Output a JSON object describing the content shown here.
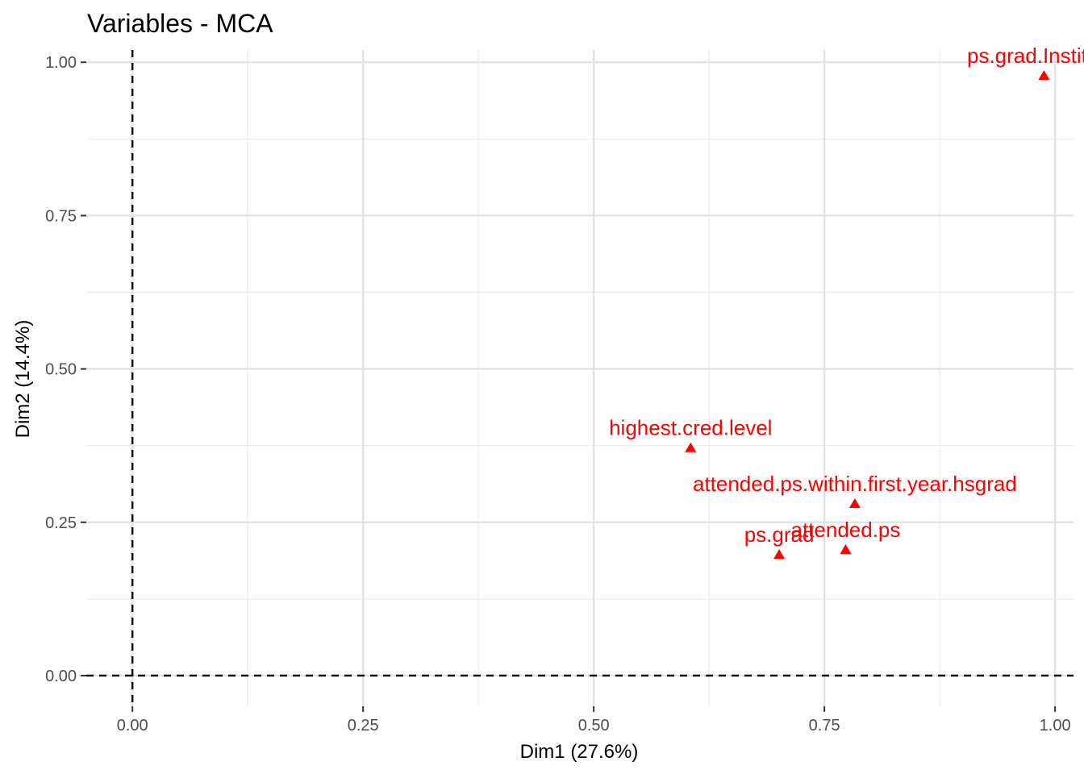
{
  "chart_data": {
    "type": "scatter",
    "title": "Variables - MCA",
    "xlabel": "Dim1 (27.6%)",
    "ylabel": "Dim2 (14.4%)",
    "xlim": [
      -0.05,
      1.02
    ],
    "ylim": [
      -0.05,
      1.02
    ],
    "x_ticks": [
      0,
      0.25,
      0.5,
      0.75,
      1
    ],
    "x_tick_labels": [
      "0.00",
      "0.25",
      "0.50",
      "0.75",
      "1.00"
    ],
    "y_ticks": [
      0,
      0.25,
      0.5,
      0.75,
      1
    ],
    "y_tick_labels": [
      "0.00",
      "0.25",
      "0.50",
      "0.75",
      "1.00"
    ],
    "grid": true,
    "reference_lines": {
      "x": 0,
      "y": 0,
      "style": "dashed"
    },
    "marker": "triangle",
    "color": "#ff0000",
    "points": [
      {
        "label": "ps.grad.Institutio",
        "x": 0.988,
        "y": 0.978
      },
      {
        "label": "highest.cred.level",
        "x": 0.605,
        "y": 0.371
      },
      {
        "label": "attended.ps.within.first.year.hsgrad",
        "x": 0.783,
        "y": 0.28
      },
      {
        "label": "attended.ps",
        "x": 0.773,
        "y": 0.205
      },
      {
        "label": "ps.grad",
        "x": 0.701,
        "y": 0.197
      }
    ]
  }
}
